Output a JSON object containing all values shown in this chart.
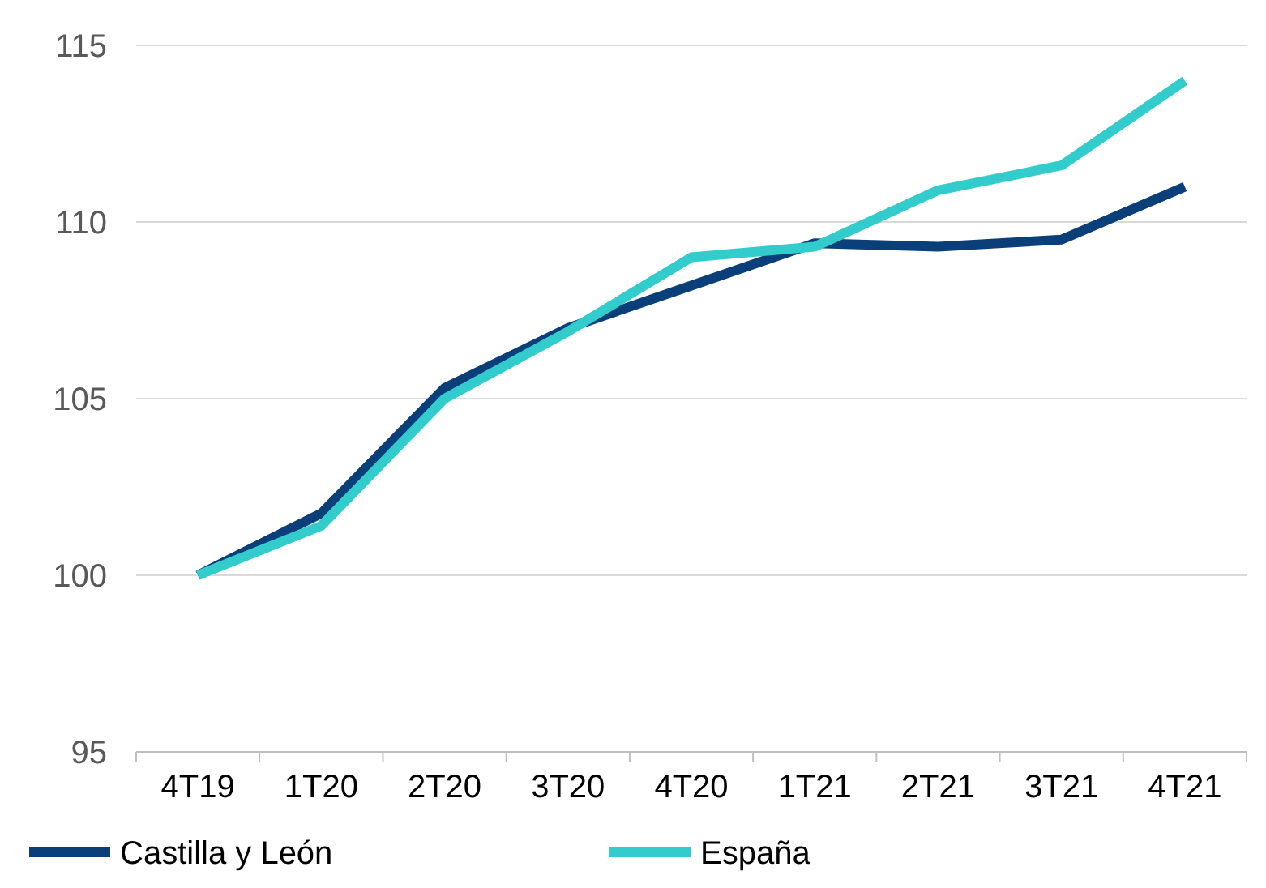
{
  "chart_data": {
    "type": "line",
    "categories": [
      "4T19",
      "1T20",
      "2T20",
      "3T20",
      "4T20",
      "1T21",
      "2T21",
      "3T21",
      "4T21"
    ],
    "series": [
      {
        "name": "Castilla y León",
        "color": "#0b3f7a",
        "values": [
          100,
          101.75,
          105.3,
          107.0,
          108.2,
          109.4,
          109.3,
          109.5,
          111.0
        ]
      },
      {
        "name": "España",
        "color": "#33cccc",
        "values": [
          100,
          101.4,
          105.0,
          106.9,
          109.0,
          109.3,
          110.9,
          111.6,
          114.0
        ]
      }
    ],
    "ylim": [
      95,
      115
    ],
    "yticks": [
      95,
      100,
      105,
      110,
      115
    ],
    "grid": "y",
    "legend": "bottom",
    "marker": "none",
    "line_style": "solid"
  }
}
